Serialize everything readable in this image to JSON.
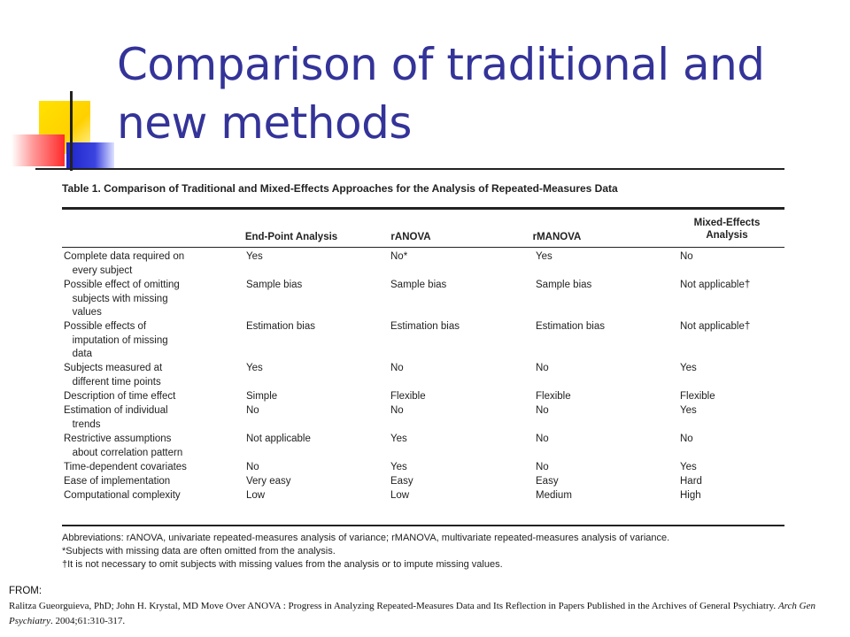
{
  "slide": {
    "title": "Comparison of traditional and new methods"
  },
  "table": {
    "caption": "Table 1. Comparison of Traditional and Mixed-Effects Approaches for the Analysis of Repeated-Measures Data",
    "columns": [
      "End-Point Analysis",
      "rANOVA",
      "rMANOVA",
      "Mixed-Effects Analysis"
    ],
    "rows": [
      {
        "label": "Complete data required on\n   every subject",
        "cells": [
          "Yes",
          "No*",
          "Yes",
          "No"
        ]
      },
      {
        "label": "Possible effect of omitting\n   subjects with missing\n   values",
        "cells": [
          "Sample bias",
          "Sample bias",
          "Sample bias",
          "Not applicable†"
        ]
      },
      {
        "label": "Possible effects of\n   imputation of missing\n   data",
        "cells": [
          "Estimation bias",
          "Estimation bias",
          "Estimation bias",
          "Not applicable†"
        ]
      },
      {
        "label": "Subjects measured at\n   different time points",
        "cells": [
          "Yes",
          "No",
          "No",
          "Yes"
        ]
      },
      {
        "label": "Description of time effect",
        "cells": [
          "Simple",
          "Flexible",
          "Flexible",
          "Flexible"
        ]
      },
      {
        "label": "Estimation of individual\n   trends",
        "cells": [
          "No",
          "No",
          "No",
          "Yes"
        ]
      },
      {
        "label": "Restrictive assumptions\n   about correlation pattern",
        "cells": [
          "Not applicable",
          "Yes",
          "No",
          "No"
        ]
      },
      {
        "label": "Time-dependent covariates",
        "cells": [
          "No",
          "Yes",
          "No",
          "Yes"
        ]
      },
      {
        "label": "Ease of implementation",
        "cells": [
          "Very easy",
          "Easy",
          "Easy",
          "Hard"
        ]
      },
      {
        "label": "Computational complexity",
        "cells": [
          "Low",
          "Low",
          "Medium",
          "High"
        ]
      }
    ],
    "notes": [
      "Abbreviations: rANOVA, univariate repeated-measures analysis of variance; rMANOVA, multivariate repeated-measures analysis of variance.",
      "*Subjects with missing data are often omitted from the analysis.",
      "†It is not necessary to omit subjects with missing values from the analysis or to impute missing values."
    ]
  },
  "source": {
    "from_label": "FROM:",
    "citation_main": "Ralitza Gueorguieva, PhD; John H. Krystal, MD  Move Over ANOVA  : Progress in Analyzing Repeated-Measures Data and Its Reflection in Papers Published in the Archives of General Psychiatry. ",
    "journal": "Arch Gen Psychiatry",
    "citation_tail": ". 2004;61:310-317."
  }
}
